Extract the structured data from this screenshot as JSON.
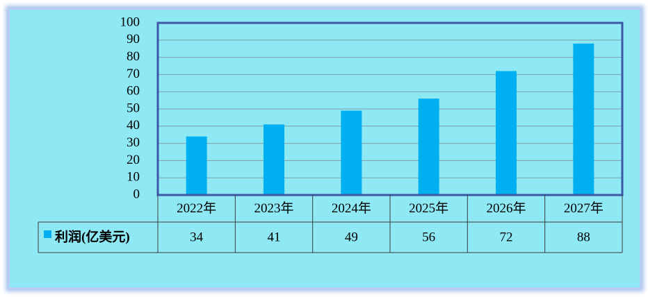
{
  "chart_data": {
    "type": "bar",
    "categories": [
      "2022年",
      "2023年",
      "2024年",
      "2025年",
      "2026年",
      "2027年"
    ],
    "series": [
      {
        "name": "利润(亿美元)",
        "color": "#00b0f0",
        "values": [
          34,
          41,
          49,
          56,
          72,
          88
        ]
      }
    ],
    "ylim": [
      0,
      100
    ],
    "yticks": [
      0,
      10,
      20,
      30,
      40,
      50,
      60,
      70,
      80,
      90,
      100
    ],
    "grid": true,
    "data_table": true
  }
}
